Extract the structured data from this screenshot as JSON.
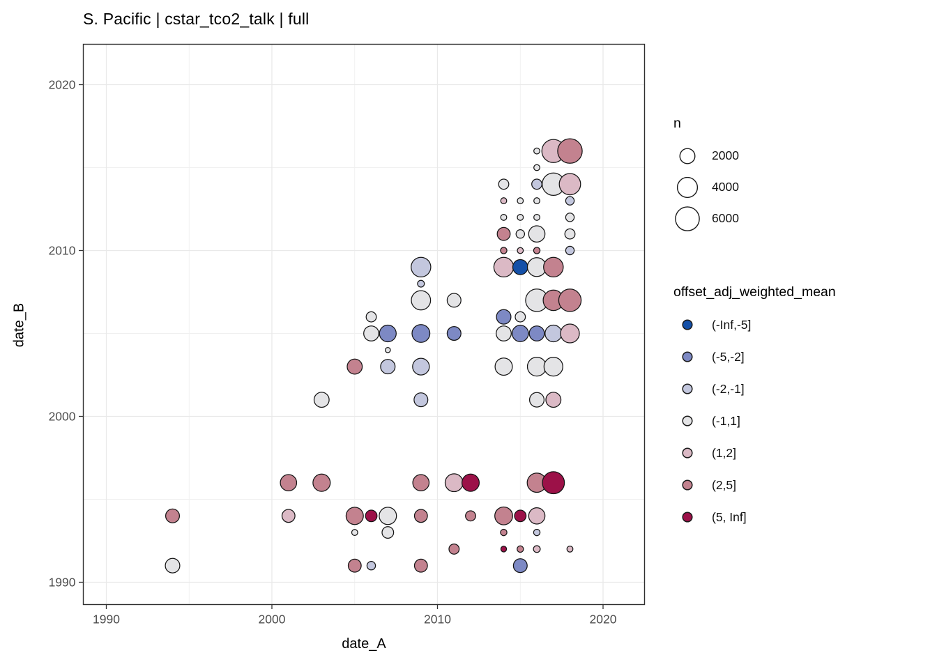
{
  "chart_data": {
    "type": "scatter",
    "title": "S. Pacific | cstar_tco2_talk | full",
    "xlabel": "date_A",
    "ylabel": "date_B",
    "x_ticks": [
      1990,
      2000,
      2010,
      2020
    ],
    "y_ticks": [
      1990,
      2000,
      2010,
      2020
    ],
    "x_minor_ticks": [
      1995,
      2005,
      2015
    ],
    "y_minor_ticks": [
      1995,
      2005,
      2015
    ],
    "xlim": [
      1988.6,
      2022.5
    ],
    "ylim": [
      1988.7,
      2022.4
    ],
    "grid": "on",
    "legend_position": "right",
    "size_legend": {
      "title": "n",
      "values": [
        2000,
        4000,
        6000
      ]
    },
    "color_legend": {
      "title": "offset_adj_weighted_mean",
      "categories": [
        {
          "label": "(-Inf,-5]",
          "color": "#1450a8"
        },
        {
          "label": "(-5,-2]",
          "color": "#7d89c4"
        },
        {
          "label": "(-2,-1]",
          "color": "#c3c7de"
        },
        {
          "label": "(-1,1]",
          "color": "#e4e4e6"
        },
        {
          "label": "(1,2]",
          "color": "#dbb9c5"
        },
        {
          "label": "(2,5]",
          "color": "#c3828f"
        },
        {
          "label": "(5, Inf]",
          "color": "#9c1148"
        }
      ]
    },
    "points_columns": [
      "date_A",
      "date_B",
      "n",
      "offset_bin"
    ],
    "points": [
      [
        1994,
        1991,
        1800,
        "(-1,1]"
      ],
      [
        1994,
        1994,
        1600,
        "(2,5]"
      ],
      [
        2001,
        1994,
        1350,
        "(1,2]"
      ],
      [
        2001,
        1996,
        2400,
        "(2,5]"
      ],
      [
        2003,
        1996,
        2800,
        "(2,5]"
      ],
      [
        2003,
        2001,
        2000,
        "(-1,1]"
      ],
      [
        2005,
        1991,
        1350,
        "(2,5]"
      ],
      [
        2005,
        1993,
        120,
        "(-1,1]"
      ],
      [
        2005,
        1994,
        2800,
        "(2,5]"
      ],
      [
        2005,
        2003,
        2000,
        "(2,5]"
      ],
      [
        2006,
        1991,
        400,
        "(-2,-1]"
      ],
      [
        2006,
        1994,
        1000,
        "(5, Inf]"
      ],
      [
        2006,
        2005,
        2000,
        "(-1,1]"
      ],
      [
        2006,
        2006,
        700,
        "(-1,1]"
      ],
      [
        2007,
        1993,
        1000,
        "(-1,1]"
      ],
      [
        2007,
        1994,
        2800,
        "(-1,1]"
      ],
      [
        2007,
        2003,
        1800,
        "(-2,-1]"
      ],
      [
        2007,
        2004,
        60,
        "(-1,1]"
      ],
      [
        2007,
        2005,
        2600,
        "(-5,-2]"
      ],
      [
        2009,
        1991,
        1350,
        "(2,5]"
      ],
      [
        2009,
        1994,
        1350,
        "(2,5]"
      ],
      [
        2009,
        1996,
        2400,
        "(2,5]"
      ],
      [
        2009,
        2001,
        1600,
        "(-2,-1]"
      ],
      [
        2009,
        2003,
        2600,
        "(-2,-1]"
      ],
      [
        2009,
        2005,
        3000,
        "(-5,-2]"
      ],
      [
        2009,
        2007,
        3600,
        "(-1,1]"
      ],
      [
        2009,
        2008,
        200,
        "(-2,-1]"
      ],
      [
        2009,
        2009,
        3800,
        "(-2,-1]"
      ],
      [
        2011,
        1992,
        700,
        "(2,5]"
      ],
      [
        2011,
        1996,
        3000,
        "(1,2]"
      ],
      [
        2011,
        2005,
        1600,
        "(-5,-2]"
      ],
      [
        2011,
        2007,
        1600,
        "(-1,1]"
      ],
      [
        2012,
        1994,
        700,
        "(2,5]"
      ],
      [
        2012,
        1996,
        2800,
        "(5, Inf]"
      ],
      [
        2014,
        1992,
        100,
        "(5, Inf]"
      ],
      [
        2014,
        1993,
        150,
        "(2,5]"
      ],
      [
        2014,
        1994,
        3000,
        "(2,5]"
      ],
      [
        2014,
        2003,
        2800,
        "(-1,1]"
      ],
      [
        2014,
        2005,
        2000,
        "(-1,1]"
      ],
      [
        2014,
        2006,
        1800,
        "(-5,-2]"
      ],
      [
        2014,
        2009,
        3800,
        "(1,2]"
      ],
      [
        2014,
        2010,
        150,
        "(2,5]"
      ],
      [
        2014,
        2011,
        1350,
        "(2,5]"
      ],
      [
        2014,
        2012,
        120,
        "(-1,1]"
      ],
      [
        2014,
        2013,
        120,
        "(1,2]"
      ],
      [
        2014,
        2014,
        700,
        "(-1,1]"
      ],
      [
        2015,
        1991,
        1600,
        "(-5,-2]"
      ],
      [
        2015,
        1992,
        150,
        "(2,5]"
      ],
      [
        2015,
        1994,
        1000,
        "(5, Inf]"
      ],
      [
        2015,
        2005,
        2400,
        "(-5,-2]"
      ],
      [
        2015,
        2006,
        700,
        "(-1,1]"
      ],
      [
        2015,
        2009,
        2000,
        "(-Inf,-5]"
      ],
      [
        2015,
        2010,
        120,
        "(1,2]"
      ],
      [
        2015,
        2011,
        400,
        "(-1,1]"
      ],
      [
        2015,
        2012,
        120,
        "(-1,1]"
      ],
      [
        2015,
        2013,
        120,
        "(-1,1]"
      ],
      [
        2016,
        1992,
        200,
        "(1,2]"
      ],
      [
        2016,
        1993,
        150,
        "(-2,-1]"
      ],
      [
        2016,
        1994,
        2400,
        "(1,2]"
      ],
      [
        2016,
        1996,
        3600,
        "(2,5]"
      ],
      [
        2016,
        2001,
        1800,
        "(-1,1]"
      ],
      [
        2016,
        2003,
        3400,
        "(-1,1]"
      ],
      [
        2016,
        2005,
        2000,
        "(-5,-2]"
      ],
      [
        2016,
        2007,
        5200,
        "(-1,1]"
      ],
      [
        2016,
        2009,
        3400,
        "(-1,1]"
      ],
      [
        2016,
        2010,
        150,
        "(2,5]"
      ],
      [
        2016,
        2011,
        2400,
        "(-1,1]"
      ],
      [
        2016,
        2012,
        120,
        "(-1,1]"
      ],
      [
        2016,
        2013,
        120,
        "(-1,1]"
      ],
      [
        2016,
        2014,
        700,
        "(-2,-1]"
      ],
      [
        2016,
        2015,
        120,
        "(-1,1]"
      ],
      [
        2016,
        2016,
        120,
        "(-1,1]"
      ],
      [
        2017,
        1996,
        5000,
        "(5, Inf]"
      ],
      [
        2017,
        2001,
        2000,
        "(1,2]"
      ],
      [
        2017,
        2003,
        3400,
        "(-1,1]"
      ],
      [
        2017,
        2005,
        2600,
        "(-2,-1]"
      ],
      [
        2017,
        2007,
        4200,
        "(2,5]"
      ],
      [
        2017,
        2009,
        3800,
        "(2,5]"
      ],
      [
        2017,
        2014,
        5200,
        "(-1,1]"
      ],
      [
        2017,
        2016,
        5600,
        "(1,2]"
      ],
      [
        2018,
        1992,
        120,
        "(1,2]"
      ],
      [
        2018,
        2005,
        3400,
        "(1,2]"
      ],
      [
        2018,
        2007,
        5200,
        "(2,5]"
      ],
      [
        2018,
        2010,
        400,
        "(-2,-1]"
      ],
      [
        2018,
        2011,
        700,
        "(-1,1]"
      ],
      [
        2018,
        2012,
        400,
        "(-1,1]"
      ],
      [
        2018,
        2013,
        400,
        "(-2,-1]"
      ],
      [
        2018,
        2014,
        4600,
        "(1,2]"
      ],
      [
        2018,
        2016,
        6400,
        "(2,5]"
      ]
    ],
    "style": {
      "panel_background": "#ffffff",
      "major_grid_color": "#e9e9e9",
      "minor_grid_color": "#f0f0f0",
      "panel_border_color": "#2f2f2f",
      "tick_label_color": "#4d4d4d",
      "point_stroke_color": "#141414"
    }
  }
}
